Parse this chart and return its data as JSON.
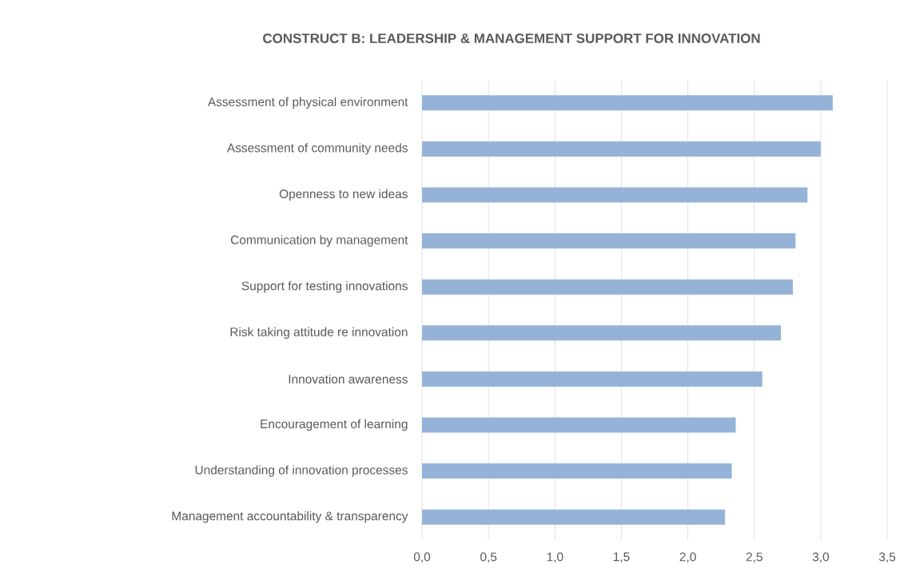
{
  "chart_data": {
    "type": "bar",
    "orientation": "horizontal",
    "title": "CONSTRUCT B: LEADERSHIP & MANAGEMENT SUPPORT FOR INNOVATION",
    "categories": [
      "Assessment of physical environment",
      "Assessment of community needs",
      "Openness to new ideas",
      "Communication by management",
      "Support for testing innovations",
      "Risk taking attitude re innovation",
      "Innovation awareness",
      "Encouragement of learning",
      "Understanding of innovation processes",
      "Management accountability & transparency"
    ],
    "values": [
      3.09,
      3.0,
      2.9,
      2.81,
      2.79,
      2.7,
      2.56,
      2.36,
      2.33,
      2.28
    ],
    "color": "#95b3d7",
    "xlim": [
      0,
      3.5
    ],
    "xticks": [
      {
        "value": 0,
        "label": "0,0"
      },
      {
        "value": 0.5,
        "label": "0,5"
      },
      {
        "value": 1,
        "label": "1,0"
      },
      {
        "value": 1.5,
        "label": "1,5"
      },
      {
        "value": 2,
        "label": "2,0"
      },
      {
        "value": 2.5,
        "label": "2,5"
      },
      {
        "value": 3,
        "label": "3,0"
      },
      {
        "value": 3.5,
        "label": "3,5"
      }
    ],
    "grid": "x"
  }
}
